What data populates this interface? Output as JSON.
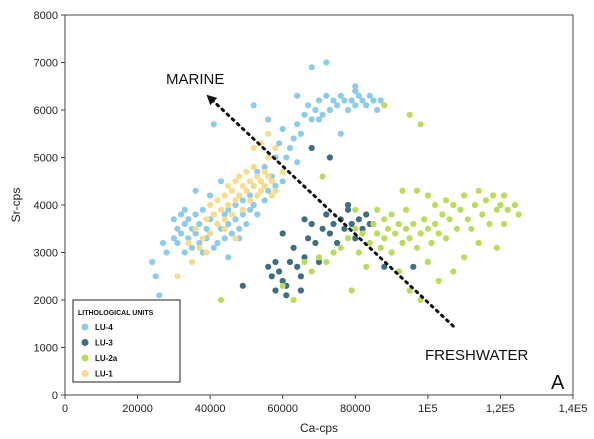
{
  "chart_data": {
    "type": "scatter",
    "xlabel": "Ca-cps",
    "ylabel": "Sr-cps",
    "xlim": [
      0,
      140000
    ],
    "ylim": [
      0,
      8000
    ],
    "x_ticks": [
      {
        "value": 0,
        "label": "0"
      },
      {
        "value": 20000,
        "label": "20000"
      },
      {
        "value": 40000,
        "label": "40000"
      },
      {
        "value": 60000,
        "label": "60000"
      },
      {
        "value": 80000,
        "label": "80000"
      },
      {
        "value": 100000,
        "label": "1E5"
      },
      {
        "value": 120000,
        "label": "1,2E5"
      },
      {
        "value": 140000,
        "label": "1,4E5"
      }
    ],
    "y_ticks": [
      {
        "value": 0,
        "label": "0"
      },
      {
        "value": 1000,
        "label": "1000"
      },
      {
        "value": 2000,
        "label": "2000"
      },
      {
        "value": 3000,
        "label": "3000"
      },
      {
        "value": 4000,
        "label": "4000"
      },
      {
        "value": 5000,
        "label": "5000"
      },
      {
        "value": 6000,
        "label": "6000"
      },
      {
        "value": 7000,
        "label": "7000"
      },
      {
        "value": 8000,
        "label": "8000"
      }
    ],
    "grid": false,
    "legend": {
      "title": "LITHOLOGICAL UNITS",
      "placement": "bottom-left"
    },
    "series": [
      {
        "name": "LU-4",
        "color": "#8ecbea",
        "points": [
          [
            24000,
            2800
          ],
          [
            26000,
            2100
          ],
          [
            27000,
            3200
          ],
          [
            28000,
            3000
          ],
          [
            30000,
            3300
          ],
          [
            30000,
            3700
          ],
          [
            31000,
            3500
          ],
          [
            31000,
            3200
          ],
          [
            32000,
            3800
          ],
          [
            32000,
            3400
          ],
          [
            33000,
            3000
          ],
          [
            33000,
            3600
          ],
          [
            33000,
            3900
          ],
          [
            34000,
            3300
          ],
          [
            34000,
            3700
          ],
          [
            35000,
            3500
          ],
          [
            35000,
            3100
          ],
          [
            36000,
            3800
          ],
          [
            36000,
            3400
          ],
          [
            37000,
            3600
          ],
          [
            37000,
            3200
          ],
          [
            38000,
            3000
          ],
          [
            38000,
            3900
          ],
          [
            39000,
            3500
          ],
          [
            39000,
            3300
          ],
          [
            40000,
            3700
          ],
          [
            40000,
            3400
          ],
          [
            41000,
            3100
          ],
          [
            41000,
            3800
          ],
          [
            42000,
            3600
          ],
          [
            42000,
            3200
          ],
          [
            43000,
            3500
          ],
          [
            44000,
            3300
          ],
          [
            44000,
            3800
          ],
          [
            45000,
            3600
          ],
          [
            45000,
            3900
          ],
          [
            46000,
            3400
          ],
          [
            47000,
            3700
          ],
          [
            47000,
            4000
          ],
          [
            48000,
            3500
          ],
          [
            48000,
            3300
          ],
          [
            49000,
            3800
          ],
          [
            49000,
            4100
          ],
          [
            50000,
            3600
          ],
          [
            50000,
            4300
          ],
          [
            51000,
            3900
          ],
          [
            51000,
            4200
          ],
          [
            52000,
            4000
          ],
          [
            52000,
            4400
          ],
          [
            53000,
            4700
          ],
          [
            53000,
            3800
          ],
          [
            54000,
            4500
          ],
          [
            55000,
            4100
          ],
          [
            55000,
            4800
          ],
          [
            56000,
            4300
          ],
          [
            57000,
            4600
          ],
          [
            58000,
            4400
          ],
          [
            58000,
            5000
          ],
          [
            59000,
            5300
          ],
          [
            60000,
            5600
          ],
          [
            61000,
            5000
          ],
          [
            62000,
            5200
          ],
          [
            63000,
            5400
          ],
          [
            64000,
            5700
          ],
          [
            65000,
            5500
          ],
          [
            66000,
            5900
          ],
          [
            67000,
            6100
          ],
          [
            68000,
            5800
          ],
          [
            69000,
            6000
          ],
          [
            70000,
            6200
          ],
          [
            71000,
            5900
          ],
          [
            72000,
            6300
          ],
          [
            73000,
            6000
          ],
          [
            74000,
            6200
          ],
          [
            75000,
            6100
          ],
          [
            76000,
            6300
          ],
          [
            77000,
            6200
          ],
          [
            78000,
            6000
          ],
          [
            79000,
            6200
          ],
          [
            80000,
            6100
          ],
          [
            80000,
            6400
          ],
          [
            81000,
            6300
          ],
          [
            82000,
            6200
          ],
          [
            83000,
            6100
          ],
          [
            84000,
            6300
          ],
          [
            85000,
            6200
          ],
          [
            86000,
            6000
          ],
          [
            87000,
            6200
          ],
          [
            64000,
            6300
          ],
          [
            68000,
            6900
          ],
          [
            72000,
            7000
          ],
          [
            41000,
            5700
          ],
          [
            36000,
            4300
          ],
          [
            52000,
            6100
          ],
          [
            25000,
            2500
          ],
          [
            45000,
            2900
          ],
          [
            60000,
            4500
          ],
          [
            64000,
            4900
          ],
          [
            56000,
            5800
          ],
          [
            70000,
            5800
          ],
          [
            76000,
            5500
          ],
          [
            80000,
            6500
          ],
          [
            40000,
            4200
          ],
          [
            43000,
            4500
          ]
        ]
      },
      {
        "name": "LU-3",
        "color": "#3e6e80",
        "points": [
          [
            49000,
            2300
          ],
          [
            56000,
            2700
          ],
          [
            57000,
            2500
          ],
          [
            58000,
            2800
          ],
          [
            58000,
            2200
          ],
          [
            59000,
            2600
          ],
          [
            60000,
            2400
          ],
          [
            61000,
            2300
          ],
          [
            62000,
            2800
          ],
          [
            63000,
            3100
          ],
          [
            64000,
            2700
          ],
          [
            65000,
            2500
          ],
          [
            66000,
            2900
          ],
          [
            67000,
            3300
          ],
          [
            68000,
            3600
          ],
          [
            69000,
            3200
          ],
          [
            70000,
            2800
          ],
          [
            71000,
            3500
          ],
          [
            72000,
            3800
          ],
          [
            73000,
            3400
          ],
          [
            74000,
            3600
          ],
          [
            75000,
            3200
          ],
          [
            76000,
            3700
          ],
          [
            77000,
            3500
          ],
          [
            78000,
            3900
          ],
          [
            79000,
            3600
          ],
          [
            80000,
            3300
          ],
          [
            81000,
            3700
          ],
          [
            82000,
            3500
          ],
          [
            83000,
            3800
          ],
          [
            84000,
            3600
          ],
          [
            88000,
            2700
          ],
          [
            60000,
            3400
          ],
          [
            66000,
            3700
          ],
          [
            68000,
            5200
          ],
          [
            73000,
            5000
          ],
          [
            78000,
            4000
          ],
          [
            65000,
            2200
          ],
          [
            61000,
            2100
          ],
          [
            96000,
            2700
          ]
        ]
      },
      {
        "name": "LU-2a",
        "color": "#b9dc5a",
        "points": [
          [
            43000,
            2000
          ],
          [
            60000,
            2300
          ],
          [
            63000,
            2000
          ],
          [
            66000,
            2800
          ],
          [
            68000,
            2600
          ],
          [
            70000,
            2900
          ],
          [
            72000,
            2800
          ],
          [
            74000,
            3000
          ],
          [
            76000,
            3100
          ],
          [
            78000,
            3300
          ],
          [
            79000,
            2200
          ],
          [
            80000,
            3500
          ],
          [
            81000,
            3000
          ],
          [
            82000,
            3400
          ],
          [
            83000,
            2700
          ],
          [
            84000,
            3200
          ],
          [
            85000,
            3600
          ],
          [
            86000,
            3400
          ],
          [
            87000,
            3100
          ],
          [
            88000,
            3700
          ],
          [
            88000,
            3300
          ],
          [
            89000,
            3500
          ],
          [
            90000,
            3800
          ],
          [
            90000,
            3000
          ],
          [
            91000,
            3400
          ],
          [
            92000,
            3600
          ],
          [
            92000,
            2600
          ],
          [
            93000,
            3200
          ],
          [
            94000,
            3900
          ],
          [
            94000,
            3500
          ],
          [
            95000,
            2200
          ],
          [
            95000,
            3300
          ],
          [
            96000,
            3600
          ],
          [
            97000,
            3100
          ],
          [
            97000,
            4300
          ],
          [
            98000,
            3400
          ],
          [
            98000,
            2000
          ],
          [
            99000,
            3700
          ],
          [
            100000,
            3500
          ],
          [
            100000,
            4200
          ],
          [
            101000,
            3200
          ],
          [
            102000,
            3600
          ],
          [
            102000,
            4000
          ],
          [
            103000,
            3400
          ],
          [
            103000,
            2400
          ],
          [
            104000,
            3800
          ],
          [
            105000,
            4100
          ],
          [
            105000,
            3300
          ],
          [
            106000,
            3700
          ],
          [
            107000,
            2600
          ],
          [
            107000,
            4000
          ],
          [
            108000,
            3500
          ],
          [
            109000,
            3900
          ],
          [
            110000,
            2900
          ],
          [
            110000,
            4200
          ],
          [
            111000,
            3700
          ],
          [
            112000,
            3500
          ],
          [
            113000,
            4000
          ],
          [
            114000,
            4300
          ],
          [
            115000,
            3800
          ],
          [
            116000,
            4100
          ],
          [
            117000,
            3600
          ],
          [
            118000,
            4200
          ],
          [
            119000,
            3900
          ],
          [
            120000,
            4000
          ],
          [
            121000,
            4200
          ],
          [
            122000,
            3900
          ],
          [
            124000,
            4000
          ],
          [
            125000,
            3800
          ],
          [
            114000,
            3200
          ],
          [
            119000,
            3100
          ],
          [
            121000,
            3600
          ],
          [
            71000,
            4600
          ],
          [
            88000,
            6100
          ],
          [
            95000,
            5900
          ],
          [
            98000,
            5700
          ],
          [
            80000,
            3900
          ],
          [
            86000,
            3900
          ],
          [
            93000,
            4300
          ],
          [
            100000,
            2800
          ]
        ]
      },
      {
        "name": "LU-1",
        "color": "#f7dc8c",
        "points": [
          [
            31000,
            2500
          ],
          [
            34000,
            3200
          ],
          [
            36000,
            3500
          ],
          [
            37000,
            3100
          ],
          [
            38000,
            3300
          ],
          [
            39000,
            3700
          ],
          [
            40000,
            3400
          ],
          [
            40000,
            4000
          ],
          [
            41000,
            3800
          ],
          [
            42000,
            3600
          ],
          [
            42000,
            4100
          ],
          [
            43000,
            3900
          ],
          [
            44000,
            4200
          ],
          [
            44000,
            3700
          ],
          [
            45000,
            4000
          ],
          [
            45000,
            4400
          ],
          [
            46000,
            4300
          ],
          [
            46000,
            3800
          ],
          [
            47000,
            4500
          ],
          [
            47000,
            4100
          ],
          [
            48000,
            4200
          ],
          [
            48000,
            4600
          ],
          [
            49000,
            4400
          ],
          [
            49000,
            3900
          ],
          [
            50000,
            4300
          ],
          [
            50000,
            4700
          ],
          [
            51000,
            4500
          ],
          [
            51000,
            4100
          ],
          [
            52000,
            4400
          ],
          [
            52000,
            4800
          ],
          [
            53000,
            4600
          ],
          [
            53000,
            4200
          ],
          [
            54000,
            4300
          ],
          [
            54000,
            4500
          ],
          [
            55000,
            4400
          ],
          [
            55000,
            4700
          ],
          [
            56000,
            4600
          ],
          [
            56000,
            5000
          ],
          [
            57000,
            4500
          ],
          [
            57000,
            4200
          ],
          [
            58000,
            4300
          ],
          [
            44000,
            3500
          ],
          [
            47000,
            3300
          ],
          [
            52000,
            5200
          ],
          [
            54000,
            5300
          ],
          [
            56000,
            5500
          ],
          [
            58000,
            5200
          ],
          [
            60000,
            4700
          ],
          [
            39000,
            3000
          ],
          [
            35000,
            2800
          ]
        ]
      }
    ],
    "annotations": {
      "marine": "MARINE",
      "freshwater": "FRESHWATER",
      "panel_label": "A",
      "arrow": {
        "from": [
          107000,
          1450
        ],
        "to": [
          40000,
          6250
        ]
      }
    }
  }
}
